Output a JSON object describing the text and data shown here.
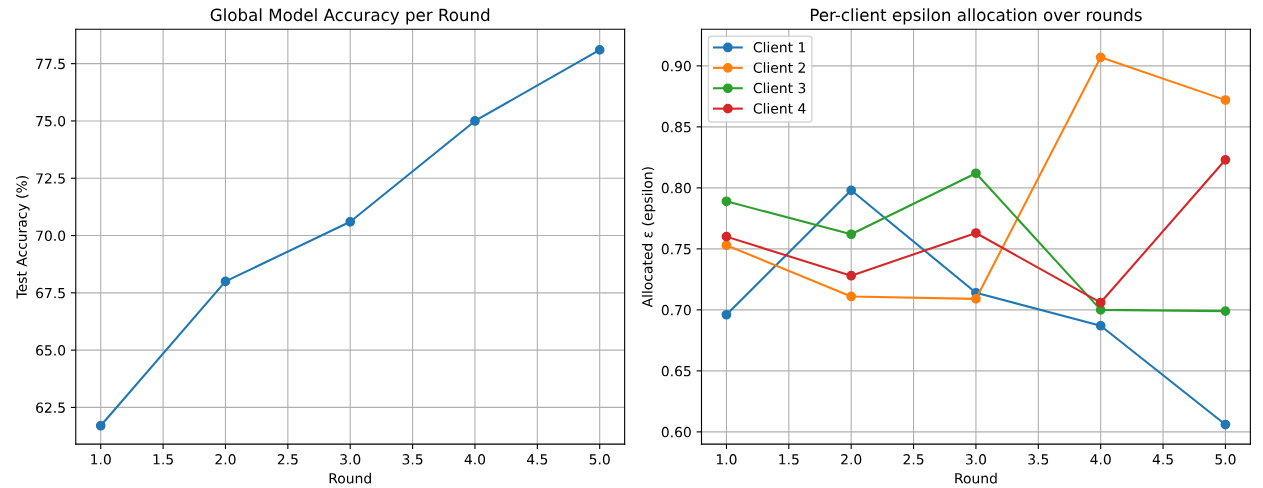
{
  "chart_data": [
    {
      "type": "line",
      "title": "Global Model Accuracy per Round",
      "xlabel": "Round",
      "ylabel": "Test Accuracy (%)",
      "x": [
        1,
        2,
        3,
        4,
        5
      ],
      "series": [
        {
          "color": "#1f77b4",
          "values": [
            61.7,
            68.0,
            70.6,
            75.0,
            78.1
          ]
        }
      ],
      "xlim": [
        0.8,
        5.2
      ],
      "xticks": [
        {
          "value": 1,
          "label": "1.0"
        },
        {
          "value": 1.5,
          "label": "1.5"
        },
        {
          "value": 2,
          "label": "2.0"
        },
        {
          "value": 2.5,
          "label": "2.5"
        },
        {
          "value": 3,
          "label": "3.0"
        },
        {
          "value": 3.5,
          "label": "3.5"
        },
        {
          "value": 4,
          "label": "4.0"
        },
        {
          "value": 4.5,
          "label": "4.5"
        },
        {
          "value": 5,
          "label": "5.0"
        }
      ],
      "ylim": [
        60.9,
        79.0
      ],
      "yticks": [
        62.5,
        {
          "value": 65,
          "label": "65.0"
        },
        67.5,
        {
          "value": 70,
          "label": "70.0"
        },
        72.5,
        {
          "value": 75,
          "label": "75.0"
        },
        77.5
      ],
      "grid": true,
      "marker": "circle",
      "line_style": "solid",
      "legend": false
    },
    {
      "type": "line",
      "title": "Per-client epsilon allocation over rounds",
      "xlabel": "Round",
      "ylabel": "Allocated ε (epsilon)",
      "x": [
        1,
        2,
        3,
        4,
        5
      ],
      "series": [
        {
          "name": "Client 1",
          "color": "#1f77b4",
          "values": [
            0.696,
            0.798,
            0.714,
            0.687,
            0.606
          ]
        },
        {
          "name": "Client 2",
          "color": "#ff7f0e",
          "values": [
            0.753,
            0.711,
            0.709,
            0.907,
            0.872
          ]
        },
        {
          "name": "Client 3",
          "color": "#2ca02c",
          "values": [
            0.789,
            0.762,
            0.812,
            0.7,
            0.699
          ]
        },
        {
          "name": "Client 4",
          "color": "#d62728",
          "values": [
            0.76,
            0.728,
            0.763,
            0.706,
            0.823
          ]
        }
      ],
      "xlim": [
        0.8,
        5.2
      ],
      "xticks": [
        {
          "value": 1,
          "label": "1.0"
        },
        {
          "value": 1.5,
          "label": "1.5"
        },
        {
          "value": 2,
          "label": "2.0"
        },
        {
          "value": 2.5,
          "label": "2.5"
        },
        {
          "value": 3,
          "label": "3.0"
        },
        {
          "value": 3.5,
          "label": "3.5"
        },
        {
          "value": 4,
          "label": "4.0"
        },
        {
          "value": 4.5,
          "label": "4.5"
        },
        {
          "value": 5,
          "label": "5.0"
        }
      ],
      "ylim": [
        0.59,
        0.93
      ],
      "yticks": [
        {
          "value": 0.6,
          "label": "0.60"
        },
        0.65,
        {
          "value": 0.7,
          "label": "0.70"
        },
        0.75,
        {
          "value": 0.8,
          "label": "0.80"
        },
        0.85,
        {
          "value": 0.9,
          "label": "0.90"
        }
      ],
      "grid": true,
      "marker": "circle",
      "line_style": "solid",
      "legend": "top left"
    }
  ]
}
